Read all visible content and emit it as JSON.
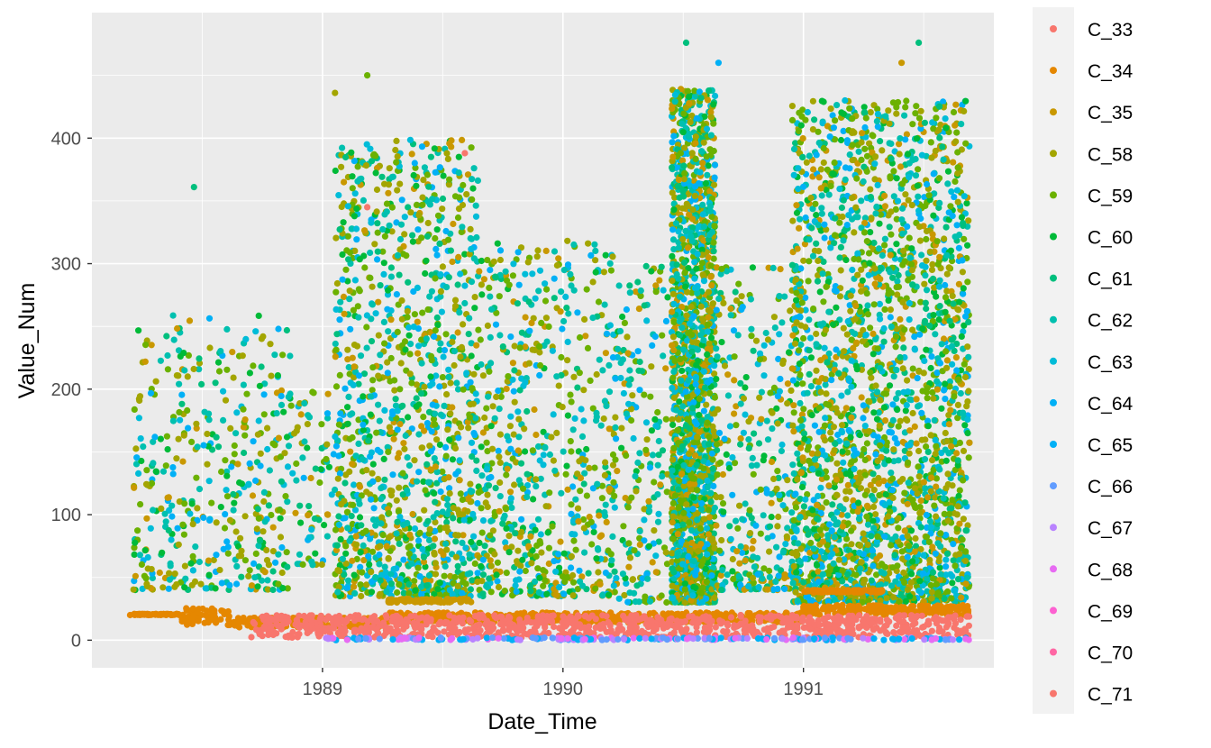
{
  "chart_data": {
    "type": "scatter",
    "title": "",
    "xlabel": "Date_Time",
    "ylabel": "Value_Num",
    "x_range": [
      "1988-01-17",
      "1991-10-17"
    ],
    "ylim": [
      -22,
      500
    ],
    "x_ticks": [
      {
        "date": "1989-01-01",
        "label": "1989"
      },
      {
        "date": "1990-01-01",
        "label": "1990"
      },
      {
        "date": "1991-01-01",
        "label": "1991"
      }
    ],
    "y_ticks": [
      0,
      100,
      200,
      300,
      400
    ],
    "grid": true,
    "legend_position": "right",
    "background": "#EBEBEB",
    "series": [
      {
        "name": "C_33",
        "color": "#F8766D"
      },
      {
        "name": "C_34",
        "color": "#E58700"
      },
      {
        "name": "C_35",
        "color": "#C99800"
      },
      {
        "name": "C_58",
        "color": "#A3A500"
      },
      {
        "name": "C_59",
        "color": "#6BB100"
      },
      {
        "name": "C_60",
        "color": "#00BA38"
      },
      {
        "name": "C_61",
        "color": "#00BF7D"
      },
      {
        "name": "C_62",
        "color": "#00C0AF"
      },
      {
        "name": "C_63",
        "color": "#00BCD8"
      },
      {
        "name": "C_64",
        "color": "#00B0F6"
      },
      {
        "name": "C_65",
        "color": "#00B0F6"
      },
      {
        "name": "C_66",
        "color": "#619CFF"
      },
      {
        "name": "C_67",
        "color": "#B983FF"
      },
      {
        "name": "C_68",
        "color": "#E76BF3"
      },
      {
        "name": "C_69",
        "color": "#FD61D1"
      },
      {
        "name": "C_70",
        "color": "#FF67A4"
      },
      {
        "name": "C_71",
        "color": "#F8766D"
      }
    ],
    "annotated_points": [
      {
        "series": "C_33",
        "x": "1989-03-10",
        "y": 345
      },
      {
        "series": "C_33",
        "x": "1989-08-05",
        "y": 388
      },
      {
        "series": "C_61",
        "x": "1990-07-07",
        "y": 476
      },
      {
        "series": "C_61",
        "x": "1991-06-25",
        "y": 476
      },
      {
        "series": "C_59",
        "x": "1989-03-10",
        "y": 450
      },
      {
        "series": "C_35",
        "x": "1991-05-30",
        "y": 460
      },
      {
        "series": "C_64",
        "x": "1990-08-25",
        "y": 460
      },
      {
        "series": "C_58",
        "x": "1989-01-20",
        "y": 436
      },
      {
        "series": "C_61",
        "x": "1988-06-20",
        "y": 361
      },
      {
        "series": "C_34",
        "x": "1988-03-15",
        "y": 20
      },
      {
        "series": "C_34",
        "x": "1991-02-10",
        "y": 40
      }
    ]
  }
}
